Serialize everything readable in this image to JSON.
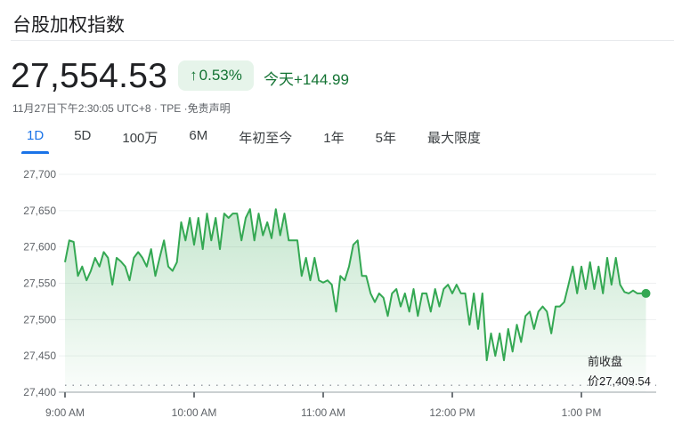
{
  "header": {
    "title": "台股加权指数",
    "price": "27,554.53",
    "change_percent": "0.53%",
    "change_arrow": "arrow-up-icon",
    "change_today": "今天+144.99",
    "meta": "11月27日下午2:30:05 UTC+8 · TPE ·免责声明"
  },
  "tabs": [
    {
      "label": "1D",
      "active": true
    },
    {
      "label": "5D"
    },
    {
      "label": "100万"
    },
    {
      "label": "6M"
    },
    {
      "label": "年初至今"
    },
    {
      "label": "1年"
    },
    {
      "label": "5年"
    },
    {
      "label": "最大限度"
    }
  ],
  "colors": {
    "line": "#34a853",
    "positive": "#137333",
    "badge_bg": "#e6f4ea",
    "accent": "#1a73e8"
  },
  "chart_data": {
    "type": "area",
    "ylim": [
      27400,
      27700
    ],
    "yticks": [
      "27,700",
      "27,650",
      "27,600",
      "27,550",
      "27,500",
      "27,450",
      "27,400"
    ],
    "ytick_values": [
      27700,
      27650,
      27600,
      27550,
      27500,
      27450,
      27400
    ],
    "xticks": [
      "9:00 AM",
      "10:00 AM",
      "11:00 AM",
      "12:00 PM",
      "1:00 PM"
    ],
    "xtick_times": [
      "09:00",
      "10:00",
      "11:00",
      "12:00",
      "13:00"
    ],
    "xlim": [
      "09:00",
      "13:30"
    ],
    "grid": true,
    "previous_close": {
      "label_line1": "前收盘",
      "label_line2": "价27,409.54",
      "value": 27409.54
    },
    "times": [
      "09:00",
      "09:02",
      "09:04",
      "09:06",
      "09:08",
      "09:10",
      "09:12",
      "09:14",
      "09:16",
      "09:18",
      "09:20",
      "09:22",
      "09:24",
      "09:26",
      "09:28",
      "09:30",
      "09:32",
      "09:34",
      "09:36",
      "09:38",
      "09:40",
      "09:42",
      "09:44",
      "09:46",
      "09:48",
      "09:50",
      "09:52",
      "09:54",
      "09:56",
      "09:58",
      "10:00",
      "10:02",
      "10:04",
      "10:06",
      "10:08",
      "10:10",
      "10:12",
      "10:14",
      "10:16",
      "10:18",
      "10:20",
      "10:22",
      "10:24",
      "10:26",
      "10:28",
      "10:30",
      "10:32",
      "10:34",
      "10:36",
      "10:38",
      "10:40",
      "10:42",
      "10:44",
      "10:46",
      "10:48",
      "10:50",
      "10:52",
      "10:54",
      "10:56",
      "10:58",
      "11:00",
      "11:02",
      "11:04",
      "11:06",
      "11:08",
      "11:10",
      "11:12",
      "11:14",
      "11:16",
      "11:18",
      "11:20",
      "11:22",
      "11:24",
      "11:26",
      "11:28",
      "11:30",
      "11:32",
      "11:34",
      "11:36",
      "11:38",
      "11:40",
      "11:42",
      "11:44",
      "11:46",
      "11:48",
      "11:50",
      "11:52",
      "11:54",
      "11:56",
      "11:58",
      "12:00",
      "12:02",
      "12:04",
      "12:06",
      "12:08",
      "12:10",
      "12:12",
      "12:14",
      "12:16",
      "12:18",
      "12:20",
      "12:22",
      "12:24",
      "12:26",
      "12:28",
      "12:30",
      "12:32",
      "12:34",
      "12:36",
      "12:38",
      "12:40",
      "12:42",
      "12:44",
      "12:46",
      "12:48",
      "12:50",
      "12:52",
      "12:54",
      "12:56",
      "12:58",
      "13:00",
      "13:02",
      "13:04",
      "13:06",
      "13:08",
      "13:10",
      "13:12",
      "13:14",
      "13:16",
      "13:18",
      "13:20",
      "13:22",
      "13:24",
      "13:26",
      "13:28",
      "13:30"
    ],
    "values": [
      27579,
      27609,
      27607,
      27560,
      27573,
      27554,
      27567,
      27585,
      27573,
      27593,
      27585,
      27548,
      27585,
      27580,
      27573,
      27554,
      27585,
      27593,
      27585,
      27573,
      27597,
      27560,
      27585,
      27609,
      27573,
      27567,
      27579,
      27634,
      27609,
      27640,
      27603,
      27640,
      27597,
      27646,
      27609,
      27640,
      27597,
      27646,
      27640,
      27646,
      27646,
      27609,
      27640,
      27652,
      27609,
      27646,
      27616,
      27634,
      27612,
      27652,
      27616,
      27646,
      27609,
      27609,
      27609,
      27560,
      27585,
      27554,
      27585,
      27554,
      27551,
      27554,
      27548,
      27511,
      27560,
      27554,
      27573,
      27603,
      27609,
      27560,
      27560,
      27536,
      27524,
      27536,
      27530,
      27505,
      27536,
      27542,
      27518,
      27536,
      27511,
      27542,
      27505,
      27536,
      27536,
      27511,
      27542,
      27518,
      27542,
      27548,
      27536,
      27548,
      27536,
      27536,
      27493,
      27536,
      27487,
      27536,
      27444,
      27481,
      27450,
      27481,
      27444,
      27487,
      27456,
      27493,
      27469,
      27505,
      27511,
      27487,
      27511,
      27518,
      27511,
      27481,
      27518,
      27518,
      27524,
      27548,
      27573,
      27536,
      27573,
      27542,
      27579,
      27542,
      27573,
      27536,
      27585,
      27548,
      27585,
      27548,
      27538,
      27536,
      27540,
      27536,
      27536,
      27536
    ]
  }
}
